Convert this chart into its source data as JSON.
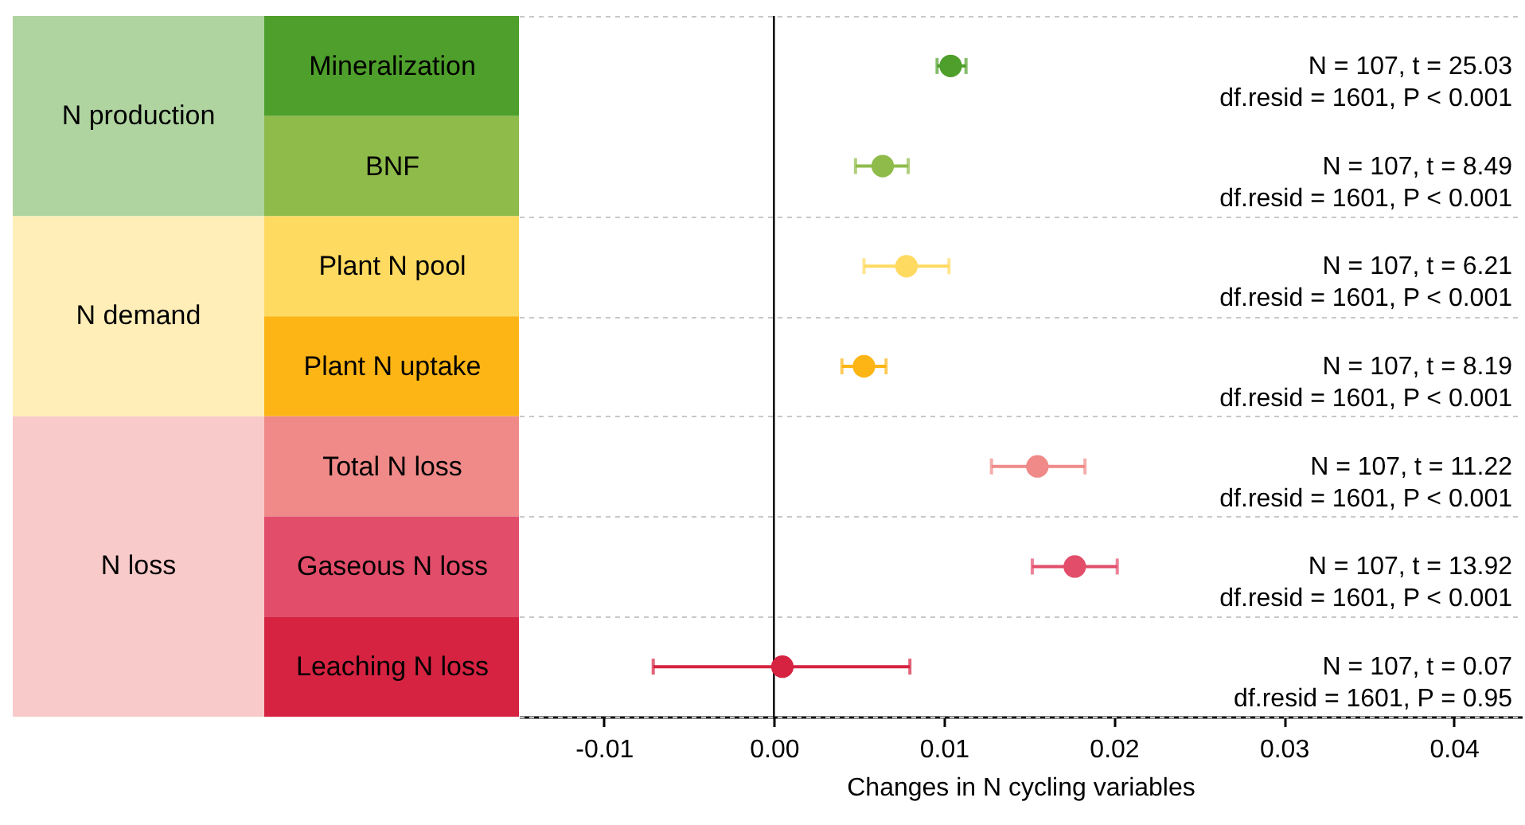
{
  "chart_data": {
    "type": "scatter",
    "orientation": "horizontal",
    "xlabel": "Changes in N cycling variables",
    "categories": [
      "Mineralization",
      "BNF",
      "Plant N pool",
      "Plant N uptake",
      "Total N loss",
      "Gaseous N loss",
      "Leaching N loss"
    ],
    "values": [
      0.0104,
      0.0064,
      0.0078,
      0.0053,
      0.0155,
      0.0177,
      0.0005
    ],
    "errors": [
      [
        0.0096,
        0.0113
      ],
      [
        0.0048,
        0.0079
      ],
      [
        0.0053,
        0.0103
      ],
      [
        0.004,
        0.0066
      ],
      [
        0.0128,
        0.0183
      ],
      [
        0.0152,
        0.0202
      ],
      [
        -0.0071,
        0.008
      ]
    ],
    "colors": [
      "#4e9f2b",
      "#8fbb4a",
      "#ffda60",
      "#fdb515",
      "#ef8a88",
      "#e24d6a",
      "#d52341"
    ],
    "xlim": [
      -0.015,
      0.044
    ],
    "xticks": [
      {
        "value": -0.01,
        "label": "-0.01"
      },
      {
        "value": 0,
        "label": "0.00"
      },
      {
        "value": 0.01,
        "label": "0.01"
      },
      {
        "value": 0.02,
        "label": "0.02"
      },
      {
        "value": 0.03,
        "label": "0.03"
      },
      {
        "value": 0.04,
        "label": "0.04"
      }
    ],
    "grid": "y",
    "marker": "circle",
    "ref_lines": [
      {
        "axis": "x",
        "value": 0,
        "color": "#000000"
      }
    ],
    "annotations": [
      "N production",
      "N = 107, t = 25.03\ndf.resid = 1601, P < 0.001",
      "N = 107, t = 8.49\ndf.resid = 1601, P < 0.001",
      "N demand",
      "N = 107, t = 6.21\ndf.resid = 1601, P < 0.001",
      "N = 107, t = 8.19\ndf.resid = 1601, P < 0.001",
      "N loss",
      "N = 107, t  = 11.22\ndf.resid = 1601, P < 0.001",
      "N = 107, t = 13.92\ndf.resid = 1601, P < 0.001",
      "N = 107, t = 0.07\ndf.resid = 1601, P = 0.95"
    ]
  }
}
